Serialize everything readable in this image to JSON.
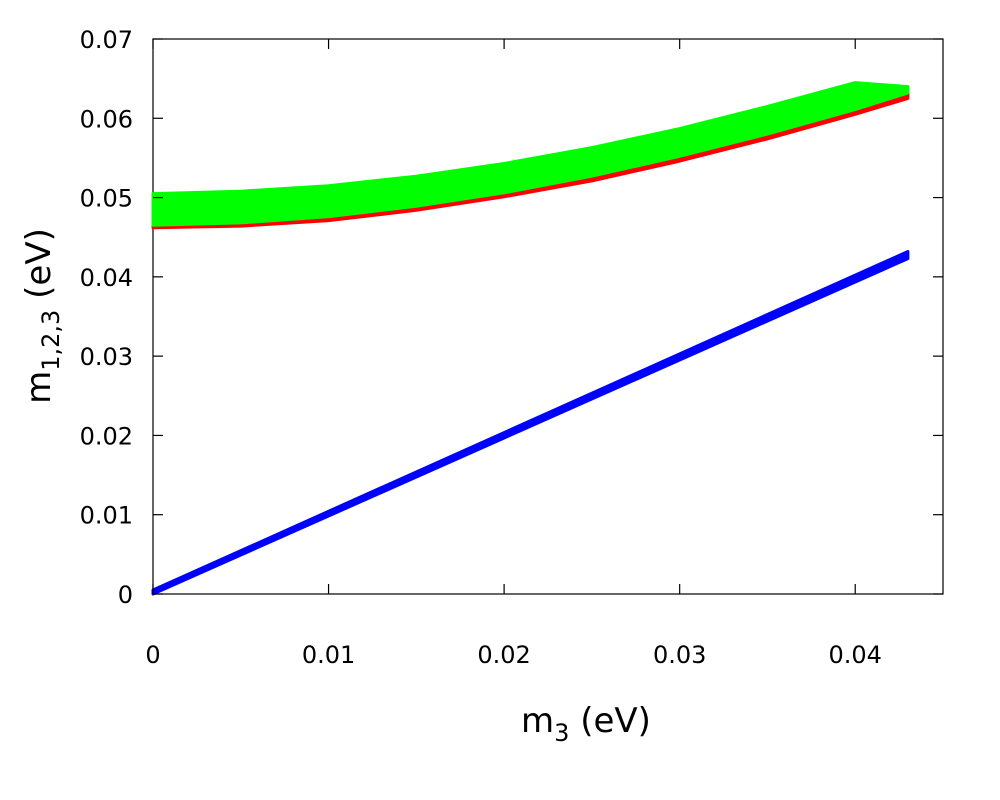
{
  "chart_data": {
    "type": "area",
    "xlabel": {
      "main": "m",
      "sub": "3",
      "unit": " (eV)"
    },
    "ylabel": {
      "main": "m",
      "sub": "1,2,3",
      "unit": " (eV)"
    },
    "xlim": [
      0,
      0.045
    ],
    "ylim": [
      0,
      0.07
    ],
    "x_ticks": [
      0,
      0.01,
      0.02,
      0.03,
      0.04
    ],
    "x_tick_labels": [
      "0",
      "0.01",
      "0.02",
      "0.03",
      "0.04"
    ],
    "y_ticks": [
      0,
      0.01,
      0.02,
      0.03,
      0.04,
      0.05,
      0.06,
      0.07
    ],
    "y_tick_labels": [
      "0",
      "0.01",
      "0.02",
      "0.03",
      "0.04",
      "0.05",
      "0.06",
      "0.07"
    ],
    "grid": false,
    "legend": "none",
    "series": [
      {
        "color": "#ff0000",
        "x": [
          0.0,
          0.005,
          0.01,
          0.015,
          0.02,
          0.025,
          0.03,
          0.035,
          0.04,
          0.043
        ],
        "lower": [
          0.0462,
          0.0464,
          0.0471,
          0.0484,
          0.0501,
          0.0521,
          0.0546,
          0.0574,
          0.0605,
          0.0625
        ],
        "upper": [
          0.0465,
          0.0468,
          0.0476,
          0.0489,
          0.0506,
          0.0527,
          0.0552,
          0.058,
          0.0611,
          0.0631
        ]
      },
      {
        "color": "#00ff00",
        "x": [
          0.0,
          0.005,
          0.01,
          0.015,
          0.02,
          0.025,
          0.03,
          0.035,
          0.04,
          0.043
        ],
        "lower": [
          0.0465,
          0.0468,
          0.0476,
          0.0489,
          0.0506,
          0.0527,
          0.0552,
          0.058,
          0.0611,
          0.0632
        ],
        "upper": [
          0.0505,
          0.0508,
          0.0515,
          0.0527,
          0.0543,
          0.0563,
          0.0587,
          0.0615,
          0.0645,
          0.064
        ]
      },
      {
        "color": "#0000ff",
        "x": [
          0.0,
          0.043
        ],
        "lower": [
          0.0,
          0.0423
        ],
        "upper": [
          0.0005,
          0.0432
        ]
      }
    ]
  }
}
